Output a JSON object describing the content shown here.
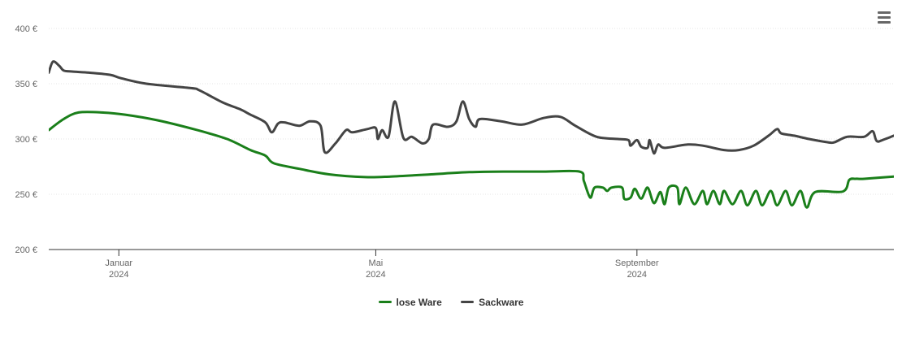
{
  "chart_data": {
    "type": "line",
    "x_type": "date",
    "x_range": [
      "2023-11-29",
      "2024-12-31"
    ],
    "ylim": [
      200,
      400
    ],
    "yticks": [
      200,
      250,
      300,
      350,
      400
    ],
    "ytick_labels": [
      "200 €",
      "250 €",
      "300 €",
      "350 €",
      "400 €"
    ],
    "xticks": [
      {
        "date": "2024-01-01",
        "label_month": "Januar",
        "label_year": "2024"
      },
      {
        "date": "2024-05-01",
        "label_month": "Mai",
        "label_year": "2024"
      },
      {
        "date": "2024-09-01",
        "label_month": "September",
        "label_year": "2024"
      }
    ],
    "grid": true,
    "legend_position": "bottom-center",
    "series": [
      {
        "name": "lose Ware",
        "color": "#1a7f1a",
        "points": [
          [
            "2023-11-29",
            308
          ],
          [
            "2023-12-06",
            318
          ],
          [
            "2023-12-13",
            324
          ],
          [
            "2023-12-24",
            324
          ],
          [
            "2024-01-04",
            322
          ],
          [
            "2024-01-19",
            317
          ],
          [
            "2024-02-07",
            308
          ],
          [
            "2024-02-21",
            300
          ],
          [
            "2024-03-03",
            290
          ],
          [
            "2024-03-10",
            285
          ],
          [
            "2024-03-14",
            278
          ],
          [
            "2024-03-26",
            273
          ],
          [
            "2024-04-09",
            268
          ],
          [
            "2024-04-26",
            265.5
          ],
          [
            "2024-05-08",
            266
          ],
          [
            "2024-05-27",
            268
          ],
          [
            "2024-06-14",
            270
          ],
          [
            "2024-06-30",
            270.5
          ],
          [
            "2024-07-19",
            270.5
          ],
          [
            "2024-08-05",
            270.5
          ],
          [
            "2024-08-07",
            262
          ],
          [
            "2024-08-10",
            247
          ],
          [
            "2024-08-12",
            256
          ],
          [
            "2024-08-16",
            256
          ],
          [
            "2024-08-18",
            253
          ],
          [
            "2024-08-20",
            256
          ],
          [
            "2024-08-25",
            256
          ],
          [
            "2024-08-26",
            246
          ],
          [
            "2024-08-29",
            247
          ],
          [
            "2024-08-31",
            255
          ],
          [
            "2024-09-03",
            246
          ],
          [
            "2024-09-06",
            256
          ],
          [
            "2024-09-09",
            242
          ],
          [
            "2024-09-12",
            252
          ],
          [
            "2024-09-14",
            241
          ],
          [
            "2024-09-16",
            256
          ],
          [
            "2024-09-20",
            256
          ],
          [
            "2024-09-21",
            241
          ],
          [
            "2024-09-24",
            256
          ],
          [
            "2024-09-28",
            241
          ],
          [
            "2024-10-02",
            253
          ],
          [
            "2024-10-04",
            241
          ],
          [
            "2024-10-07",
            253
          ],
          [
            "2024-10-10",
            241
          ],
          [
            "2024-10-12",
            253
          ],
          [
            "2024-10-16",
            241
          ],
          [
            "2024-10-20",
            253
          ],
          [
            "2024-10-23",
            240
          ],
          [
            "2024-10-27",
            253
          ],
          [
            "2024-10-30",
            240
          ],
          [
            "2024-11-03",
            253
          ],
          [
            "2024-11-06",
            240
          ],
          [
            "2024-11-10",
            253
          ],
          [
            "2024-11-13",
            240
          ],
          [
            "2024-11-17",
            253
          ],
          [
            "2024-11-20",
            238
          ],
          [
            "2024-11-24",
            252
          ],
          [
            "2024-12-07",
            252.5
          ],
          [
            "2024-12-10",
            263
          ],
          [
            "2024-12-13",
            264
          ],
          [
            "2024-12-17",
            264
          ],
          [
            "2024-12-31",
            266
          ]
        ]
      },
      {
        "name": "Sackware",
        "color": "#444444",
        "points": [
          [
            "2023-11-29",
            360
          ],
          [
            "2023-12-01",
            370
          ],
          [
            "2023-12-04",
            366
          ],
          [
            "2023-12-06",
            362
          ],
          [
            "2023-12-10",
            361
          ],
          [
            "2023-12-18",
            360
          ],
          [
            "2023-12-28",
            358
          ],
          [
            "2024-01-02",
            355
          ],
          [
            "2024-01-14",
            350
          ],
          [
            "2024-02-04",
            346
          ],
          [
            "2024-02-08",
            344
          ],
          [
            "2024-02-19",
            333
          ],
          [
            "2024-02-27",
            327
          ],
          [
            "2024-03-03",
            322
          ],
          [
            "2024-03-10",
            315
          ],
          [
            "2024-03-13",
            306
          ],
          [
            "2024-03-16",
            314
          ],
          [
            "2024-03-19",
            315
          ],
          [
            "2024-03-26",
            312
          ],
          [
            "2024-03-31",
            316
          ],
          [
            "2024-04-05",
            312
          ],
          [
            "2024-04-07",
            288
          ],
          [
            "2024-04-12",
            296
          ],
          [
            "2024-04-17",
            308
          ],
          [
            "2024-04-20",
            306
          ],
          [
            "2024-04-27",
            309
          ],
          [
            "2024-05-01",
            310
          ],
          [
            "2024-05-02",
            300
          ],
          [
            "2024-05-04",
            308
          ],
          [
            "2024-05-07",
            302
          ],
          [
            "2024-05-10",
            334
          ],
          [
            "2024-05-14",
            301
          ],
          [
            "2024-05-18",
            302
          ],
          [
            "2024-05-23",
            296
          ],
          [
            "2024-05-26",
            300
          ],
          [
            "2024-05-28",
            313
          ],
          [
            "2024-06-04",
            311
          ],
          [
            "2024-06-08",
            316
          ],
          [
            "2024-06-11",
            334
          ],
          [
            "2024-06-14",
            318
          ],
          [
            "2024-06-17",
            311
          ],
          [
            "2024-06-19",
            318
          ],
          [
            "2024-06-29",
            316
          ],
          [
            "2024-07-09",
            313
          ],
          [
            "2024-07-19",
            319
          ],
          [
            "2024-07-27",
            320
          ],
          [
            "2024-08-03",
            312
          ],
          [
            "2024-08-13",
            302
          ],
          [
            "2024-08-23",
            300
          ],
          [
            "2024-08-28",
            299
          ],
          [
            "2024-08-29",
            294
          ],
          [
            "2024-09-01",
            299
          ],
          [
            "2024-09-03",
            293
          ],
          [
            "2024-09-06",
            292
          ],
          [
            "2024-09-07",
            299
          ],
          [
            "2024-09-09",
            287
          ],
          [
            "2024-09-11",
            295
          ],
          [
            "2024-09-14",
            292
          ],
          [
            "2024-09-25",
            295
          ],
          [
            "2024-10-02",
            294
          ],
          [
            "2024-10-12",
            290
          ],
          [
            "2024-10-19",
            290
          ],
          [
            "2024-10-26",
            294
          ],
          [
            "2024-11-02",
            303
          ],
          [
            "2024-11-06",
            309
          ],
          [
            "2024-11-08",
            305
          ],
          [
            "2024-11-14",
            303
          ],
          [
            "2024-11-21",
            300
          ],
          [
            "2024-11-30",
            297
          ],
          [
            "2024-12-03",
            297
          ],
          [
            "2024-12-09",
            302
          ],
          [
            "2024-12-17",
            302
          ],
          [
            "2024-12-21",
            307
          ],
          [
            "2024-12-23",
            298
          ],
          [
            "2024-12-27",
            300
          ],
          [
            "2025-01-07",
            307
          ],
          [
            "2025-01-21",
            306
          ]
        ]
      }
    ]
  },
  "menu": {
    "icon": "hamburger-menu-icon"
  }
}
